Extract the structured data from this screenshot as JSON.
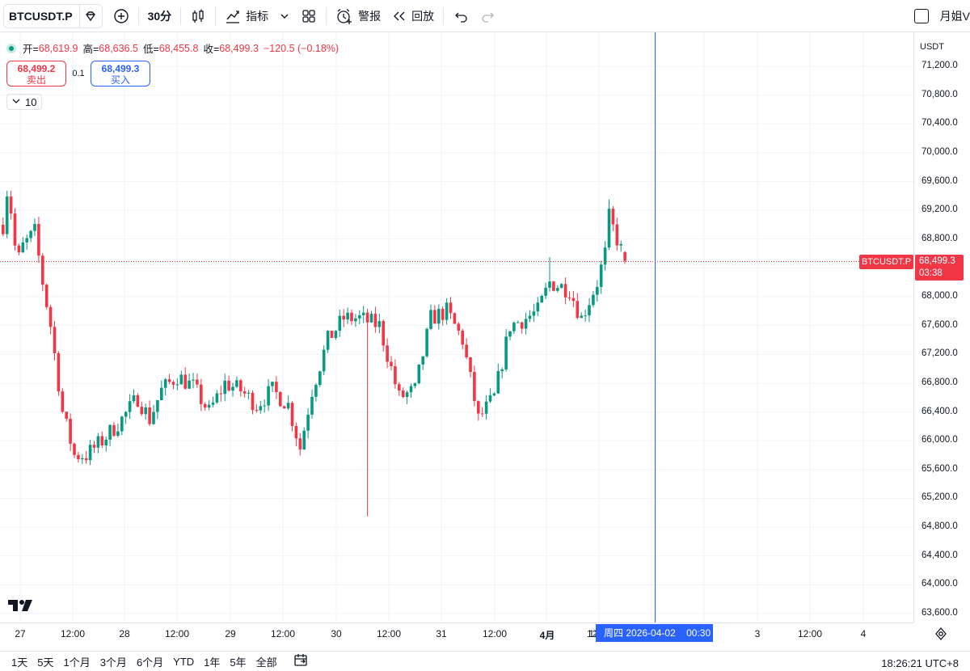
{
  "toolbar": {
    "symbol": "BTCUSDT.P",
    "interval": "30分",
    "indicators_label": "指标",
    "alerts_label": "警报",
    "replay_label": "回放",
    "account_label": "月姐V"
  },
  "legend": {
    "open_key": "开=",
    "open": "68,619.9",
    "high_key": "高=",
    "high": "68,636.5",
    "low_key": "低=",
    "low": "68,455.8",
    "close_key": "收=",
    "close": "68,499.3",
    "change": "−120.5 (−0.18%)"
  },
  "trade": {
    "sell_price": "68,499.2",
    "sell_label": "卖出",
    "quantity": "0.1",
    "buy_price": "68,499.3",
    "buy_label": "买入"
  },
  "volume_indicator": "10",
  "price_axis": {
    "currency": "USDT",
    "ticks": [
      "71,200.0",
      "70,800.0",
      "70,400.0",
      "70,000.0",
      "69,600.0",
      "69,200.0",
      "68,800.0",
      "68,000.0",
      "67,600.0",
      "67,200.0",
      "66,800.0",
      "66,400.0",
      "66,000.0",
      "65,600.0",
      "65,200.0",
      "64,800.0",
      "64,400.0",
      "64,000.0",
      "63,600.0"
    ],
    "symbol_label": "BTCUSDT.P",
    "current_price": "68,499.3",
    "countdown": "03:38"
  },
  "time_axis": {
    "ticks": [
      "27",
      "12:00",
      "28",
      "12:00",
      "29",
      "12:00",
      "30",
      "12:00",
      "31",
      "12:00",
      "4月",
      "12:00",
      "3",
      "12:00",
      "4"
    ],
    "hidden_under_tooltip": "12",
    "tooltip_day": "周四",
    "tooltip_date": "2026-04-02",
    "tooltip_time": "00:30"
  },
  "bottom_bar": {
    "ranges": [
      "1天",
      "5天",
      "1个月",
      "3个月",
      "6个月",
      "YTD",
      "1年",
      "5年",
      "全部"
    ],
    "clock": "18:26:21 UTC+8"
  },
  "colors": {
    "up": "#089981",
    "down": "#f23645",
    "accent": "#2962ff"
  },
  "chart_data": {
    "type": "candlestick",
    "symbol": "BTCUSDT.P",
    "interval": "30分",
    "ylim": [
      63400,
      71400
    ],
    "x": [
      "03-27",
      "03-28",
      "03-29",
      "03-30",
      "03-31",
      "04-01",
      "04-02"
    ],
    "anchors": [
      {
        "t": 0,
        "price": 69000
      },
      {
        "t": 0.5,
        "price": 69600
      },
      {
        "t": 2,
        "price": 69200
      },
      {
        "t": 3.5,
        "price": 68450
      },
      {
        "t": 5,
        "price": 68700
      },
      {
        "t": 8,
        "price": 68900
      },
      {
        "t": 10,
        "price": 68200
      },
      {
        "t": 12,
        "price": 67600
      },
      {
        "t": 15,
        "price": 66400
      },
      {
        "t": 18,
        "price": 65800
      },
      {
        "t": 21,
        "price": 65800
      },
      {
        "t": 25,
        "price": 66000
      },
      {
        "t": 30,
        "price": 66300
      },
      {
        "t": 34,
        "price": 66600
      },
      {
        "t": 37,
        "price": 66300
      },
      {
        "t": 40,
        "price": 66700
      },
      {
        "t": 44,
        "price": 66900
      },
      {
        "t": 48,
        "price": 66750
      },
      {
        "t": 52,
        "price": 66400
      },
      {
        "t": 56,
        "price": 66800
      },
      {
        "t": 60,
        "price": 66700
      },
      {
        "t": 64,
        "price": 66500
      },
      {
        "t": 68,
        "price": 66700
      },
      {
        "t": 72,
        "price": 66500
      },
      {
        "t": 75,
        "price": 65900
      },
      {
        "t": 78,
        "price": 66700
      },
      {
        "t": 82,
        "price": 67400
      },
      {
        "t": 86,
        "price": 67700
      },
      {
        "t": 90,
        "price": 67700
      },
      {
        "t": 95,
        "price": 67600
      },
      {
        "t": 100,
        "price": 66600
      },
      {
        "t": 104,
        "price": 66700
      },
      {
        "t": 108,
        "price": 67700
      },
      {
        "t": 112,
        "price": 67800
      },
      {
        "t": 116,
        "price": 67400
      },
      {
        "t": 120,
        "price": 66300
      },
      {
        "t": 124,
        "price": 66600
      },
      {
        "t": 128,
        "price": 67600
      },
      {
        "t": 132,
        "price": 67700
      },
      {
        "t": 135,
        "price": 67800
      },
      {
        "t": 138,
        "price": 68200
      },
      {
        "t": 143,
        "price": 68100
      },
      {
        "t": 146,
        "price": 67700
      },
      {
        "t": 150,
        "price": 68200
      },
      {
        "t": 152,
        "price": 68600
      },
      {
        "t": 153,
        "price": 69100
      },
      {
        "t": 155,
        "price": 68800
      },
      {
        "t": 157,
        "price": 68500
      }
    ],
    "spikes": [
      {
        "t": 92,
        "low": 64950
      },
      {
        "t": 138,
        "high": 68550
      },
      {
        "t": 153,
        "high": 69350
      }
    ],
    "last": {
      "open": 68619.9,
      "high": 68636.5,
      "low": 68455.8,
      "close": 68499.3
    }
  }
}
